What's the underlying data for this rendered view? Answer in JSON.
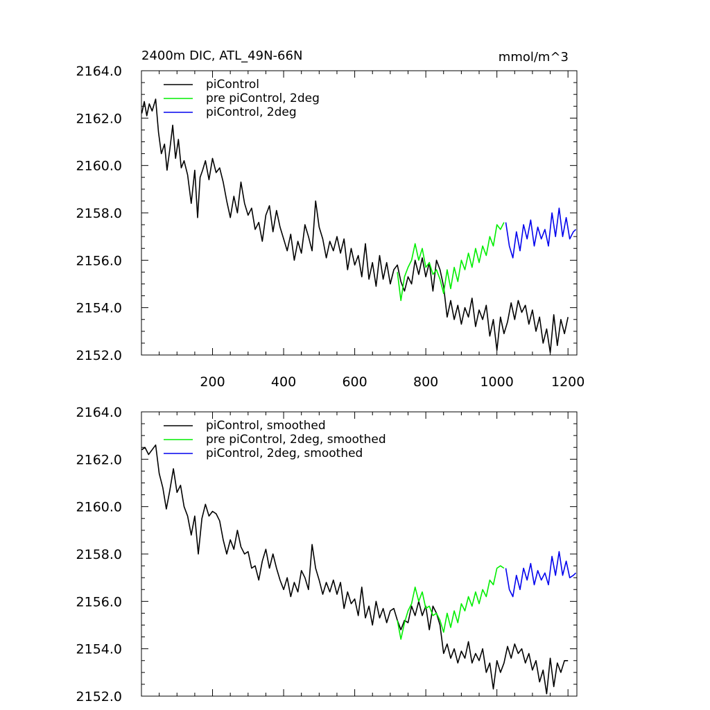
{
  "chart_data": [
    {
      "type": "line",
      "title": "2400m DIC, ATL_49N-66N",
      "units": "mmol/m^3",
      "xlim": [
        0,
        1225
      ],
      "ylim": [
        2152.0,
        2164.0
      ],
      "x_ticks": [
        200,
        400,
        600,
        800,
        1000,
        1200
      ],
      "x_tick_labels": [
        "200",
        "400",
        "600",
        "800",
        "1000",
        "1200"
      ],
      "y_ticks": [
        2152,
        2154,
        2156,
        2158,
        2160,
        2162,
        2164
      ],
      "y_tick_labels": [
        "2152.0",
        "2154.0",
        "2156.0",
        "2158.0",
        "2160.0",
        "2162.0",
        "2164.0"
      ],
      "grid": false,
      "legend_position": "top-left",
      "series": [
        {
          "name": "piControl",
          "color": "#000000",
          "x": [
            1,
            8,
            15,
            22,
            30,
            40,
            48,
            56,
            65,
            72,
            80,
            88,
            96,
            104,
            112,
            120,
            130,
            140,
            150,
            158,
            165,
            172,
            180,
            190,
            200,
            210,
            220,
            230,
            240,
            250,
            260,
            270,
            280,
            290,
            300,
            310,
            320,
            330,
            340,
            350,
            360,
            370,
            380,
            390,
            400,
            410,
            420,
            430,
            440,
            450,
            460,
            470,
            480,
            490,
            500,
            510,
            520,
            530,
            540,
            550,
            560,
            570,
            580,
            590,
            600,
            610,
            620,
            630,
            640,
            650,
            660,
            670,
            680,
            690,
            700,
            710,
            720,
            730,
            740,
            750,
            760,
            770,
            780,
            790,
            800,
            810,
            820,
            830,
            840,
            850,
            860,
            870,
            880,
            890,
            900,
            910,
            920,
            930,
            940,
            950,
            960,
            970,
            980,
            990,
            1000,
            1010,
            1020,
            1030,
            1040,
            1050,
            1060,
            1070,
            1080,
            1090,
            1100,
            1110,
            1120,
            1130,
            1140,
            1150,
            1160,
            1170,
            1180,
            1190,
            1200
          ],
          "values": [
            2162.2,
            2162.7,
            2162.1,
            2162.6,
            2162.3,
            2162.8,
            2161.4,
            2160.5,
            2160.9,
            2159.8,
            2160.7,
            2161.7,
            2160.3,
            2161.1,
            2159.9,
            2160.2,
            2159.6,
            2158.4,
            2159.8,
            2157.8,
            2159.5,
            2159.8,
            2160.2,
            2159.4,
            2160.3,
            2159.7,
            2159.9,
            2159.3,
            2158.5,
            2157.8,
            2158.7,
            2158.0,
            2159.3,
            2158.4,
            2157.9,
            2158.2,
            2157.3,
            2157.6,
            2156.8,
            2157.9,
            2158.3,
            2157.2,
            2158.1,
            2157.4,
            2156.9,
            2156.4,
            2157.1,
            2156.0,
            2156.8,
            2156.3,
            2157.5,
            2157.0,
            2156.4,
            2158.5,
            2157.4,
            2156.9,
            2156.1,
            2156.8,
            2156.4,
            2157.0,
            2156.3,
            2156.9,
            2155.6,
            2156.5,
            2155.8,
            2156.2,
            2155.3,
            2156.7,
            2155.2,
            2155.9,
            2154.9,
            2156.2,
            2155.2,
            2155.9,
            2155.0,
            2155.6,
            2155.8,
            2155.1,
            2154.7,
            2155.3,
            2155.0,
            2156.0,
            2155.4,
            2156.1,
            2155.3,
            2155.9,
            2154.7,
            2156.0,
            2155.6,
            2154.9,
            2153.6,
            2154.3,
            2153.5,
            2154.1,
            2153.3,
            2154.0,
            2153.6,
            2154.4,
            2153.2,
            2153.9,
            2153.5,
            2154.1,
            2152.8,
            2153.5,
            2152.2,
            2153.6,
            2152.9,
            2153.4,
            2154.2,
            2153.5,
            2154.3,
            2153.8,
            2154.1,
            2153.3,
            2153.9,
            2153.0,
            2153.6,
            2152.5,
            2153.1,
            2152.1,
            2153.7,
            2152.4,
            2153.5,
            2152.9,
            2153.6
          ]
        },
        {
          "name": "pre piControl, 2deg",
          "color": "#00ee00",
          "x": [
            720,
            730,
            740,
            750,
            760,
            770,
            780,
            790,
            800,
            810,
            820,
            830,
            840,
            850,
            860,
            870,
            880,
            890,
            900,
            910,
            920,
            930,
            940,
            950,
            960,
            970,
            980,
            990,
            1000,
            1010,
            1020
          ],
          "values": [
            2155.5,
            2154.3,
            2155.3,
            2155.7,
            2156.0,
            2156.7,
            2156.0,
            2156.5,
            2155.7,
            2155.9,
            2155.4,
            2155.6,
            2155.2,
            2154.6,
            2155.6,
            2154.8,
            2155.7,
            2155.1,
            2156.0,
            2155.6,
            2156.3,
            2155.7,
            2156.5,
            2155.9,
            2156.6,
            2156.2,
            2157.0,
            2156.6,
            2157.5,
            2157.3,
            2157.6
          ]
        },
        {
          "name": "piControl, 2deg",
          "color": "#0000ee",
          "x": [
            1025,
            1035,
            1045,
            1055,
            1065,
            1075,
            1085,
            1095,
            1105,
            1115,
            1125,
            1135,
            1145,
            1155,
            1165,
            1175,
            1185,
            1195,
            1205,
            1215,
            1222
          ],
          "values": [
            2157.6,
            2156.6,
            2156.1,
            2157.2,
            2156.4,
            2157.5,
            2156.9,
            2157.7,
            2156.6,
            2157.4,
            2156.9,
            2157.3,
            2156.6,
            2158.0,
            2157.0,
            2158.2,
            2157.0,
            2157.8,
            2156.9,
            2157.2,
            2157.3
          ]
        }
      ]
    },
    {
      "type": "line",
      "xlim": [
        0,
        1225
      ],
      "ylim": [
        2152.0,
        2164.0
      ],
      "x_ticks": [
        200,
        400,
        600,
        800,
        1000,
        1200
      ],
      "y_ticks": [
        2152,
        2154,
        2156,
        2158,
        2160,
        2162,
        2164
      ],
      "y_tick_labels": [
        "2152.0",
        "2154.0",
        "2156.0",
        "2158.0",
        "2160.0",
        "2162.0",
        "2164.0"
      ],
      "grid": false,
      "legend_position": "top-left",
      "series": [
        {
          "name": "piControl, smoothed",
          "color": "#000000",
          "x": [
            1,
            10,
            20,
            30,
            40,
            50,
            60,
            70,
            80,
            90,
            100,
            110,
            120,
            130,
            140,
            150,
            160,
            170,
            180,
            190,
            200,
            210,
            220,
            230,
            240,
            250,
            260,
            270,
            280,
            290,
            300,
            310,
            320,
            330,
            340,
            350,
            360,
            370,
            380,
            390,
            400,
            410,
            420,
            430,
            440,
            450,
            460,
            470,
            480,
            490,
            500,
            510,
            520,
            530,
            540,
            550,
            560,
            570,
            580,
            590,
            600,
            610,
            620,
            630,
            640,
            650,
            660,
            670,
            680,
            690,
            700,
            710,
            720,
            730,
            740,
            750,
            760,
            770,
            780,
            790,
            800,
            810,
            820,
            830,
            840,
            850,
            860,
            870,
            880,
            890,
            900,
            910,
            920,
            930,
            940,
            950,
            960,
            970,
            980,
            990,
            1000,
            1010,
            1020,
            1030,
            1040,
            1050,
            1060,
            1070,
            1080,
            1090,
            1100,
            1110,
            1120,
            1130,
            1140,
            1150,
            1160,
            1170,
            1180,
            1190,
            1200
          ],
          "values": [
            2162.4,
            2162.5,
            2162.2,
            2162.4,
            2162.6,
            2161.4,
            2160.8,
            2159.9,
            2160.7,
            2161.6,
            2160.6,
            2160.9,
            2160.0,
            2159.6,
            2158.8,
            2159.6,
            2158.0,
            2159.5,
            2160.1,
            2159.6,
            2159.8,
            2159.7,
            2159.4,
            2158.6,
            2158.0,
            2158.6,
            2158.2,
            2159.0,
            2158.3,
            2158.0,
            2158.1,
            2157.4,
            2157.5,
            2156.9,
            2157.7,
            2158.2,
            2157.4,
            2158.0,
            2157.4,
            2156.9,
            2156.5,
            2157.0,
            2156.2,
            2156.8,
            2156.4,
            2157.3,
            2157.0,
            2156.5,
            2158.4,
            2157.4,
            2156.9,
            2156.3,
            2156.8,
            2156.4,
            2156.9,
            2156.3,
            2156.8,
            2155.7,
            2156.4,
            2155.9,
            2156.1,
            2155.4,
            2156.6,
            2155.3,
            2155.8,
            2155.0,
            2156.0,
            2155.3,
            2155.7,
            2155.1,
            2155.6,
            2155.7,
            2155.2,
            2154.8,
            2155.2,
            2155.1,
            2155.8,
            2155.4,
            2156.0,
            2155.4,
            2155.8,
            2154.8,
            2155.8,
            2155.5,
            2155.0,
            2153.8,
            2154.2,
            2153.6,
            2154.0,
            2153.4,
            2153.9,
            2153.6,
            2154.3,
            2153.4,
            2153.8,
            2153.5,
            2154.0,
            2153.0,
            2153.4,
            2152.3,
            2153.5,
            2153.0,
            2153.4,
            2154.1,
            2153.6,
            2154.2,
            2153.8,
            2154.0,
            2153.4,
            2153.8,
            2153.1,
            2153.5,
            2152.6,
            2153.1,
            2152.1,
            2153.6,
            2152.4,
            2153.4,
            2153.0,
            2153.5,
            2153.5
          ]
        },
        {
          "name": "pre piControl, 2deg, smoothed",
          "color": "#00ee00",
          "x": [
            720,
            730,
            740,
            750,
            760,
            770,
            780,
            790,
            800,
            810,
            820,
            830,
            840,
            850,
            860,
            870,
            880,
            890,
            900,
            910,
            920,
            930,
            940,
            950,
            960,
            970,
            980,
            990,
            1000,
            1010,
            1020
          ],
          "values": [
            2155.2,
            2154.4,
            2155.1,
            2155.6,
            2155.9,
            2156.6,
            2156.0,
            2156.4,
            2155.7,
            2155.8,
            2155.4,
            2155.5,
            2155.2,
            2154.7,
            2155.5,
            2154.9,
            2155.6,
            2155.1,
            2155.9,
            2155.6,
            2156.2,
            2155.8,
            2156.4,
            2155.9,
            2156.5,
            2156.2,
            2156.9,
            2156.7,
            2157.4,
            2157.5,
            2157.4
          ]
        },
        {
          "name": "piControl, 2deg, smoothed",
          "color": "#0000ee",
          "x": [
            1025,
            1035,
            1045,
            1055,
            1065,
            1075,
            1085,
            1095,
            1105,
            1115,
            1125,
            1135,
            1145,
            1155,
            1165,
            1175,
            1185,
            1195,
            1205,
            1215,
            1222
          ],
          "values": [
            2157.4,
            2156.5,
            2156.2,
            2157.1,
            2156.5,
            2157.4,
            2156.9,
            2157.6,
            2156.7,
            2157.3,
            2156.9,
            2157.2,
            2156.7,
            2157.9,
            2157.1,
            2158.1,
            2157.1,
            2157.7,
            2157.0,
            2157.1,
            2157.2
          ]
        }
      ]
    }
  ]
}
